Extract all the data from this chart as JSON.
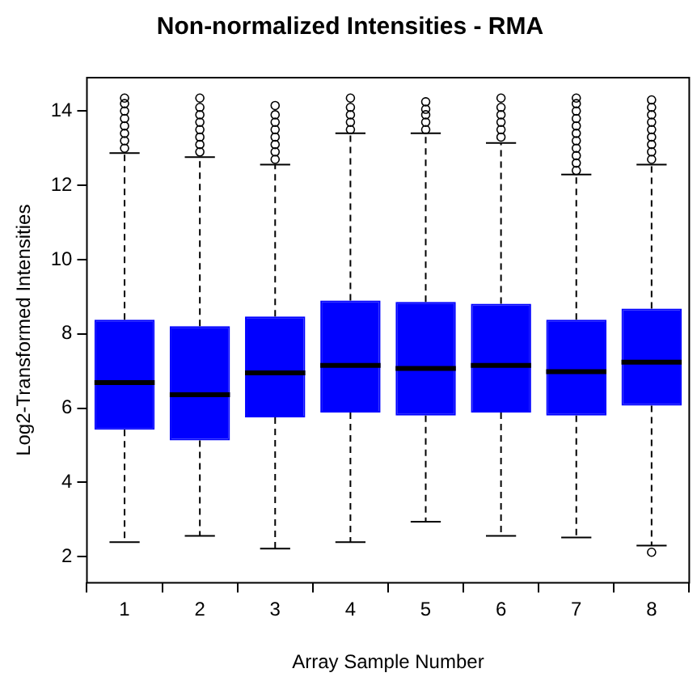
{
  "chart_data": {
    "type": "box",
    "title": "Non-normalized Intensities - RMA",
    "xlabel": "Array Sample Number",
    "ylabel": "Log2-Transformed Intensities",
    "categories": [
      "1",
      "2",
      "3",
      "4",
      "5",
      "6",
      "7",
      "8"
    ],
    "series": [
      {
        "color": "#0000ff",
        "boxes": [
          {
            "low": 2.39,
            "q1": 5.42,
            "median": 6.69,
            "q3": 8.38,
            "high": 12.87,
            "outliers": [
              13.0,
              13.2,
              13.4,
              13.6,
              13.8,
              14.0,
              14.2,
              14.35
            ]
          },
          {
            "low": 2.56,
            "q1": 5.13,
            "median": 6.36,
            "q3": 8.21,
            "high": 12.76,
            "outliers": [
              12.9,
              13.1,
              13.3,
              13.5,
              13.7,
              13.9,
              14.1,
              14.35
            ]
          },
          {
            "low": 2.22,
            "q1": 5.75,
            "median": 6.95,
            "q3": 8.47,
            "high": 12.56,
            "outliers": [
              12.7,
              12.9,
              13.1,
              13.3,
              13.5,
              13.7,
              13.9,
              14.15
            ]
          },
          {
            "low": 2.39,
            "q1": 5.88,
            "median": 7.15,
            "q3": 8.9,
            "high": 13.4,
            "outliers": [
              13.5,
              13.7,
              13.9,
              14.1,
              14.35
            ]
          },
          {
            "low": 2.94,
            "q1": 5.8,
            "median": 7.07,
            "q3": 8.86,
            "high": 13.4,
            "outliers": [
              13.5,
              13.7,
              13.9,
              14.05,
              14.25
            ]
          },
          {
            "low": 2.56,
            "q1": 5.88,
            "median": 7.15,
            "q3": 8.81,
            "high": 13.14,
            "outliers": [
              13.3,
              13.5,
              13.7,
              13.9,
              14.1,
              14.35
            ]
          },
          {
            "low": 2.52,
            "q1": 5.8,
            "median": 6.98,
            "q3": 8.38,
            "high": 12.29,
            "outliers": [
              12.4,
              12.6,
              12.8,
              13.0,
              13.2,
              13.4,
              13.6,
              13.8,
              14.0,
              14.2,
              14.35
            ]
          },
          {
            "low": 2.3,
            "q1": 6.07,
            "median": 7.24,
            "q3": 8.68,
            "high": 12.56,
            "outliers": [
              2.12,
              12.7,
              12.9,
              13.1,
              13.3,
              13.5,
              13.7,
              13.9,
              14.1,
              14.3
            ]
          }
        ]
      }
    ],
    "ylim": [
      1.3,
      14.9
    ],
    "yticks": [
      2,
      4,
      6,
      8,
      10,
      12,
      14
    ]
  }
}
